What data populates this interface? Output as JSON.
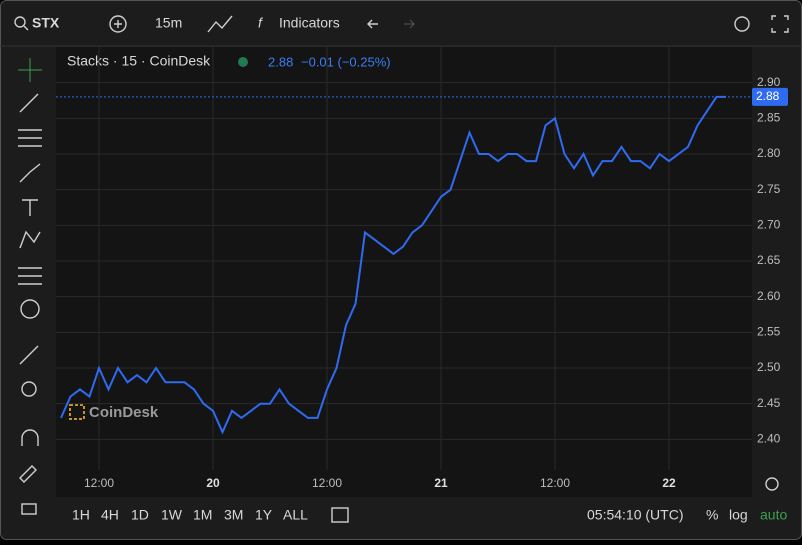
{
  "toolbar": {
    "symbol": "STX",
    "interval": "15m",
    "indicators": "Indicators"
  },
  "chart_data": {
    "type": "line",
    "legend": {
      "title": "Stacks · 15 · CoinDesk",
      "change": "−0.01 (−0.25%)"
    },
    "watermark": "CoinDesk",
    "color": "#2f6bf0",
    "categories": [
      null,
      null,
      null,
      null,
      "12:00",
      null,
      null,
      null,
      null,
      null,
      null,
      null,
      null,
      null,
      null,
      null,
      "20",
      null,
      null,
      null,
      null,
      null,
      null,
      null,
      null,
      null,
      null,
      null,
      "12:00",
      null,
      null,
      null,
      null,
      null,
      null,
      null,
      null,
      null,
      null,
      null,
      "21",
      null,
      null,
      null,
      null,
      null,
      null,
      null,
      null,
      null,
      null,
      null,
      "12:00",
      null,
      null,
      null,
      null,
      null,
      null,
      null,
      null,
      null,
      null,
      null,
      "22",
      null,
      null,
      null,
      null,
      null,
      null
    ],
    "values": [
      2.43,
      2.46,
      2.47,
      2.46,
      2.5,
      2.47,
      2.5,
      2.48,
      2.49,
      2.48,
      2.5,
      2.48,
      2.48,
      2.48,
      2.47,
      2.45,
      2.44,
      2.41,
      2.44,
      2.43,
      2.44,
      2.45,
      2.45,
      2.47,
      2.45,
      2.44,
      2.43,
      2.43,
      2.47,
      2.5,
      2.56,
      2.59,
      2.69,
      2.68,
      2.67,
      2.66,
      2.67,
      2.69,
      2.7,
      2.72,
      2.74,
      2.75,
      2.79,
      2.83,
      2.8,
      2.8,
      2.79,
      2.8,
      2.8,
      2.79,
      2.79,
      2.84,
      2.85,
      2.8,
      2.78,
      2.8,
      2.77,
      2.79,
      2.79,
      2.81,
      2.79,
      2.79,
      2.78,
      2.8,
      2.79,
      2.8,
      2.81,
      2.84,
      2.86,
      2.88,
      2.88
    ],
    "price_line": {
      "value": 2.88,
      "label": "2.88"
    },
    "ylim": [
      2.357,
      2.95
    ],
    "yticks": [
      {
        "value": 2.4,
        "label": "2.40"
      },
      2.45,
      {
        "value": 2.5,
        "label": "2.50"
      },
      2.55,
      {
        "value": 2.6,
        "label": "2.60"
      },
      2.65,
      {
        "value": 2.7,
        "label": "2.70"
      },
      2.75,
      {
        "value": 2.8,
        "label": "2.80"
      },
      2.85,
      {
        "value": 2.9,
        "label": "2.90"
      }
    ],
    "grid": true
  },
  "footer": {
    "ranges": [
      "1H",
      "4H",
      "1D",
      "1W",
      "1M",
      "3M",
      "1Y",
      "ALL"
    ],
    "clock": "05:54:10 (UTC)",
    "percent": "%",
    "log": "log",
    "auto": "auto"
  }
}
